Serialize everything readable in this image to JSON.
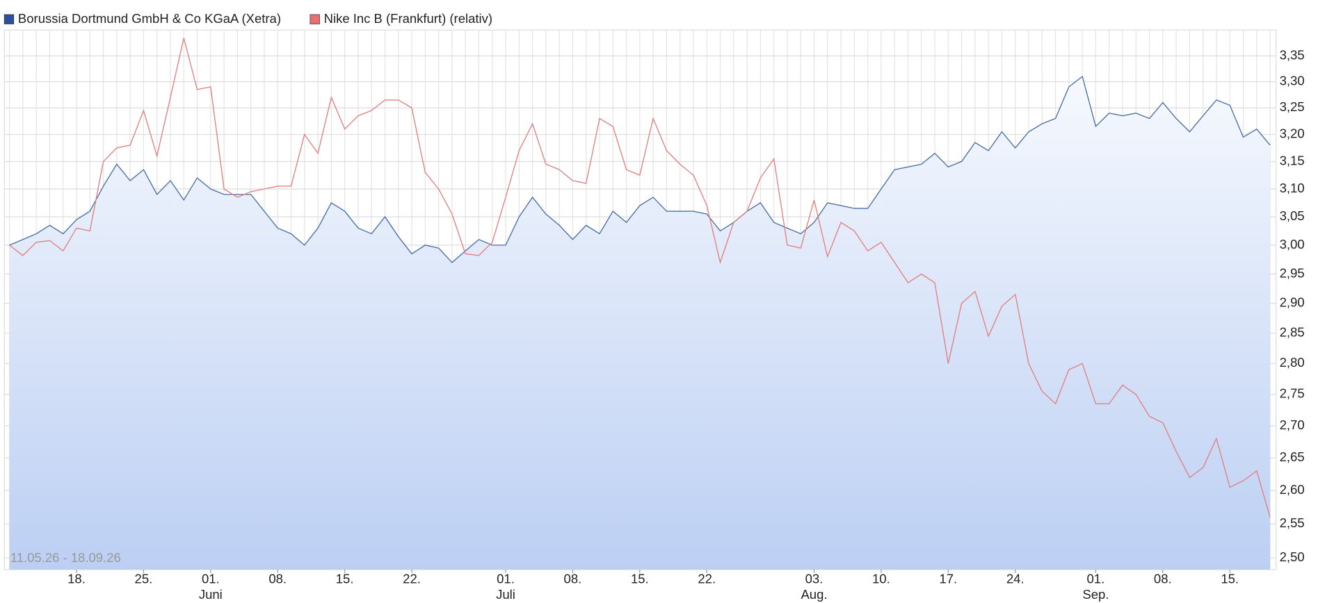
{
  "chart_data": {
    "type": "line",
    "subtitle": "11.05.26 - 18.09.26",
    "log_scale": true,
    "grid": true,
    "x": [
      "2026-05-11",
      "2026-05-12",
      "2026-05-13",
      "2026-05-14",
      "2026-05-15",
      "2026-05-18",
      "2026-05-19",
      "2026-05-20",
      "2026-05-21",
      "2026-05-22",
      "2026-05-25",
      "2026-05-26",
      "2026-05-27",
      "2026-05-28",
      "2026-05-29",
      "2026-06-01",
      "2026-06-02",
      "2026-06-03",
      "2026-06-04",
      "2026-06-05",
      "2026-06-08",
      "2026-06-09",
      "2026-06-10",
      "2026-06-11",
      "2026-06-12",
      "2026-06-15",
      "2026-06-16",
      "2026-06-17",
      "2026-06-18",
      "2026-06-19",
      "2026-06-22",
      "2026-06-23",
      "2026-06-24",
      "2026-06-25",
      "2026-06-26",
      "2026-06-29",
      "2026-06-30",
      "2026-07-01",
      "2026-07-02",
      "2026-07-03",
      "2026-07-06",
      "2026-07-07",
      "2026-07-08",
      "2026-07-09",
      "2026-07-10",
      "2026-07-13",
      "2026-07-14",
      "2026-07-15",
      "2026-07-16",
      "2026-07-17",
      "2026-07-20",
      "2026-07-21",
      "2026-07-22",
      "2026-07-23",
      "2026-07-24",
      "2026-07-27",
      "2026-07-28",
      "2026-07-29",
      "2026-07-30",
      "2026-07-31",
      "2026-08-03",
      "2026-08-04",
      "2026-08-05",
      "2026-08-06",
      "2026-08-07",
      "2026-08-10",
      "2026-08-11",
      "2026-08-12",
      "2026-08-13",
      "2026-08-14",
      "2026-08-17",
      "2026-08-18",
      "2026-08-19",
      "2026-08-20",
      "2026-08-21",
      "2026-08-24",
      "2026-08-25",
      "2026-08-26",
      "2026-08-27",
      "2026-08-28",
      "2026-08-31",
      "2026-09-01",
      "2026-09-02",
      "2026-09-03",
      "2026-09-04",
      "2026-09-07",
      "2026-09-08",
      "2026-09-09",
      "2026-09-10",
      "2026-09-11",
      "2026-09-14",
      "2026-09-15",
      "2026-09-16",
      "2026-09-17",
      "2026-09-18"
    ],
    "series": [
      {
        "name": "Borussia Dortmund GmbH & Co KGaA (Xetra)",
        "color": "#4a6fa5",
        "legend_color": "#2b4f9e",
        "area": true,
        "values": [
          3.0,
          3.01,
          3.02,
          3.035,
          3.02,
          3.045,
          3.06,
          3.105,
          3.145,
          3.115,
          3.135,
          3.09,
          3.115,
          3.08,
          3.12,
          3.1,
          3.09,
          3.09,
          3.09,
          3.06,
          3.03,
          3.02,
          3.0,
          3.03,
          3.075,
          3.06,
          3.03,
          3.02,
          3.05,
          3.015,
          2.985,
          3.0,
          2.995,
          2.97,
          2.99,
          3.01,
          3.0,
          3.0,
          3.05,
          3.085,
          3.055,
          3.035,
          3.01,
          3.035,
          3.02,
          3.06,
          3.04,
          3.07,
          3.085,
          3.06,
          3.06,
          3.06,
          3.055,
          3.025,
          3.04,
          3.06,
          3.075,
          3.04,
          3.03,
          3.02,
          3.04,
          3.075,
          3.07,
          3.065,
          3.065,
          3.1,
          3.135,
          3.14,
          3.145,
          3.165,
          3.14,
          3.15,
          3.185,
          3.17,
          3.205,
          3.175,
          3.205,
          3.22,
          3.23,
          3.29,
          3.31,
          3.215,
          3.24,
          3.235,
          3.24,
          3.23,
          3.26,
          3.23,
          3.205,
          3.235,
          3.265,
          3.255,
          3.195,
          3.21,
          3.18
        ]
      },
      {
        "name": "Nike Inc B (Frankfurt) (relativ)",
        "color": "#e08080",
        "legend_color": "#e87070",
        "area": false,
        "values": [
          3.0,
          2.982,
          3.005,
          3.008,
          2.99,
          3.03,
          3.025,
          3.15,
          3.175,
          3.18,
          3.245,
          3.16,
          3.27,
          3.385,
          3.285,
          3.29,
          3.1,
          3.085,
          3.095,
          3.1,
          3.105,
          3.105,
          3.2,
          3.165,
          3.27,
          3.21,
          3.235,
          3.245,
          3.265,
          3.265,
          3.25,
          3.13,
          3.1,
          3.055,
          2.985,
          2.982,
          3.005,
          3.085,
          3.17,
          3.22,
          3.145,
          3.135,
          3.115,
          3.11,
          3.23,
          3.215,
          3.135,
          3.125,
          3.23,
          3.17,
          3.145,
          3.125,
          3.07,
          2.97,
          3.04,
          3.06,
          3.12,
          3.155,
          3.0,
          2.995,
          3.08,
          2.98,
          3.04,
          3.025,
          2.99,
          3.005,
          2.97,
          2.935,
          2.95,
          2.935,
          2.8,
          2.9,
          2.92,
          2.845,
          2.895,
          2.915,
          2.8,
          2.755,
          2.735,
          2.79,
          2.8,
          2.735,
          2.735,
          2.765,
          2.75,
          2.715,
          2.705,
          2.66,
          2.62,
          2.635,
          2.68,
          2.605,
          2.615,
          2.63,
          2.56
        ]
      }
    ],
    "ylim": [
      2.483,
      3.401
    ],
    "yticks": [
      {
        "value": 2.5,
        "label": "2,50"
      },
      {
        "value": 2.55,
        "label": "2,55"
      },
      {
        "value": 2.6,
        "label": "2,60"
      },
      {
        "value": 2.65,
        "label": "2,65"
      },
      {
        "value": 2.7,
        "label": "2,70"
      },
      {
        "value": 2.75,
        "label": "2,75"
      },
      {
        "value": 2.8,
        "label": "2,80"
      },
      {
        "value": 2.85,
        "label": "2,85"
      },
      {
        "value": 2.9,
        "label": "2,90"
      },
      {
        "value": 2.95,
        "label": "2,95"
      },
      {
        "value": 3.0,
        "label": "3,00"
      },
      {
        "value": 3.05,
        "label": "3,05"
      },
      {
        "value": 3.1,
        "label": "3,10"
      },
      {
        "value": 3.15,
        "label": "3,15"
      },
      {
        "value": 3.2,
        "label": "3,20"
      },
      {
        "value": 3.25,
        "label": "3,25"
      },
      {
        "value": 3.3,
        "label": "3,30"
      },
      {
        "value": 3.35,
        "label": "3,35"
      }
    ],
    "xticks": [
      {
        "value": "2026-05-18",
        "label": "18."
      },
      {
        "value": "2026-05-25",
        "label": "25."
      },
      {
        "value": "2026-06-01",
        "label": "01."
      },
      {
        "value": "2026-06-08",
        "label": "08."
      },
      {
        "value": "2026-06-15",
        "label": "15."
      },
      {
        "value": "2026-06-22",
        "label": "22."
      },
      {
        "value": "2026-07-01",
        "label": "01."
      },
      {
        "value": "2026-07-08",
        "label": "08."
      },
      {
        "value": "2026-07-15",
        "label": "15."
      },
      {
        "value": "2026-07-22",
        "label": "22."
      },
      {
        "value": "2026-08-03",
        "label": "03."
      },
      {
        "value": "2026-08-10",
        "label": "10."
      },
      {
        "value": "2026-08-17",
        "label": "17."
      },
      {
        "value": "2026-08-24",
        "label": "24."
      },
      {
        "value": "2026-09-01",
        "label": "01."
      },
      {
        "value": "2026-09-08",
        "label": "08."
      },
      {
        "value": "2026-09-15",
        "label": "15."
      }
    ],
    "month_labels": [
      {
        "value": "2026-06-01",
        "label": "Juni"
      },
      {
        "value": "2026-07-01",
        "label": "Juli"
      },
      {
        "value": "2026-08-03",
        "label": "Aug."
      },
      {
        "value": "2026-09-01",
        "label": "Sep."
      }
    ]
  }
}
